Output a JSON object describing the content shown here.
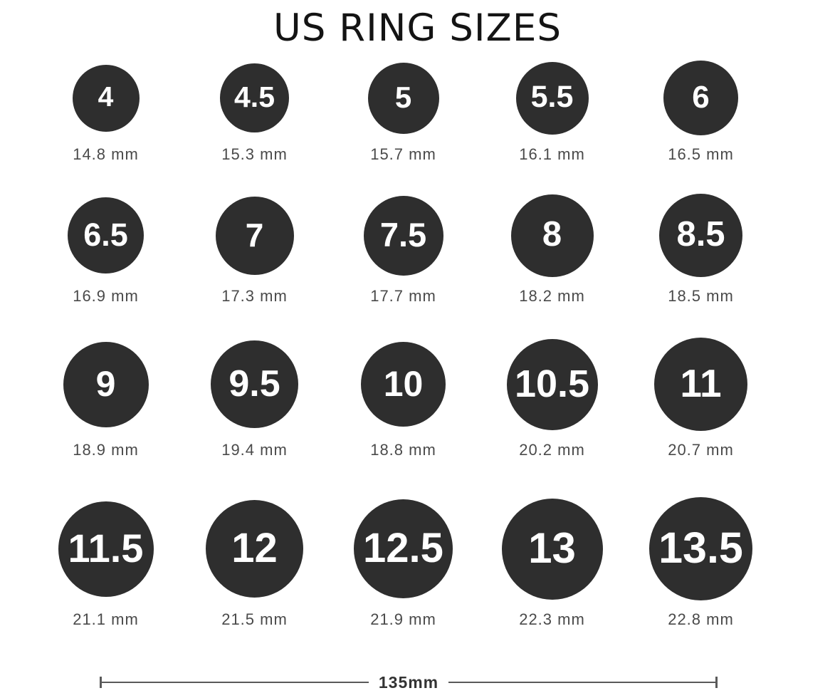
{
  "title": "US RING SIZES",
  "colors": {
    "circle_fill": "#2e2e2e",
    "circle_number": "#ffffff",
    "diameter_label": "#4a4a4a",
    "title_text": "#141414",
    "scale_bar": "#5a5a5a"
  },
  "rings": [
    {
      "size": "4",
      "diameter_label": "14.8 mm",
      "diameter_mm": 14.8
    },
    {
      "size": "4.5",
      "diameter_label": "15.3 mm",
      "diameter_mm": 15.3
    },
    {
      "size": "5",
      "diameter_label": "15.7 mm",
      "diameter_mm": 15.7
    },
    {
      "size": "5.5",
      "diameter_label": "16.1 mm",
      "diameter_mm": 16.1
    },
    {
      "size": "6",
      "diameter_label": "16.5 mm",
      "diameter_mm": 16.5
    },
    {
      "size": "6.5",
      "diameter_label": "16.9 mm",
      "diameter_mm": 16.9
    },
    {
      "size": "7",
      "diameter_label": "17.3 mm",
      "diameter_mm": 17.3
    },
    {
      "size": "7.5",
      "diameter_label": "17.7 mm",
      "diameter_mm": 17.7
    },
    {
      "size": "8",
      "diameter_label": "18.2 mm",
      "diameter_mm": 18.2
    },
    {
      "size": "8.5",
      "diameter_label": "18.5 mm",
      "diameter_mm": 18.5
    },
    {
      "size": "9",
      "diameter_label": "18.9 mm",
      "diameter_mm": 18.9
    },
    {
      "size": "9.5",
      "diameter_label": "19.4 mm",
      "diameter_mm": 19.4
    },
    {
      "size": "10",
      "diameter_label": "18.8 mm",
      "diameter_mm": 18.8
    },
    {
      "size": "10.5",
      "diameter_label": "20.2 mm",
      "diameter_mm": 20.2
    },
    {
      "size": "11",
      "diameter_label": "20.7 mm",
      "diameter_mm": 20.7
    },
    {
      "size": "11.5",
      "diameter_label": "21.1 mm",
      "diameter_mm": 21.1
    },
    {
      "size": "12",
      "diameter_label": "21.5 mm",
      "diameter_mm": 21.5
    },
    {
      "size": "12.5",
      "diameter_label": "21.9 mm",
      "diameter_mm": 21.9
    },
    {
      "size": "13",
      "diameter_label": "22.3 mm",
      "diameter_mm": 22.3
    },
    {
      "size": "13.5",
      "diameter_label": "22.8 mm",
      "diameter_mm": 22.8
    }
  ],
  "scale_bar": {
    "label": "135mm"
  }
}
